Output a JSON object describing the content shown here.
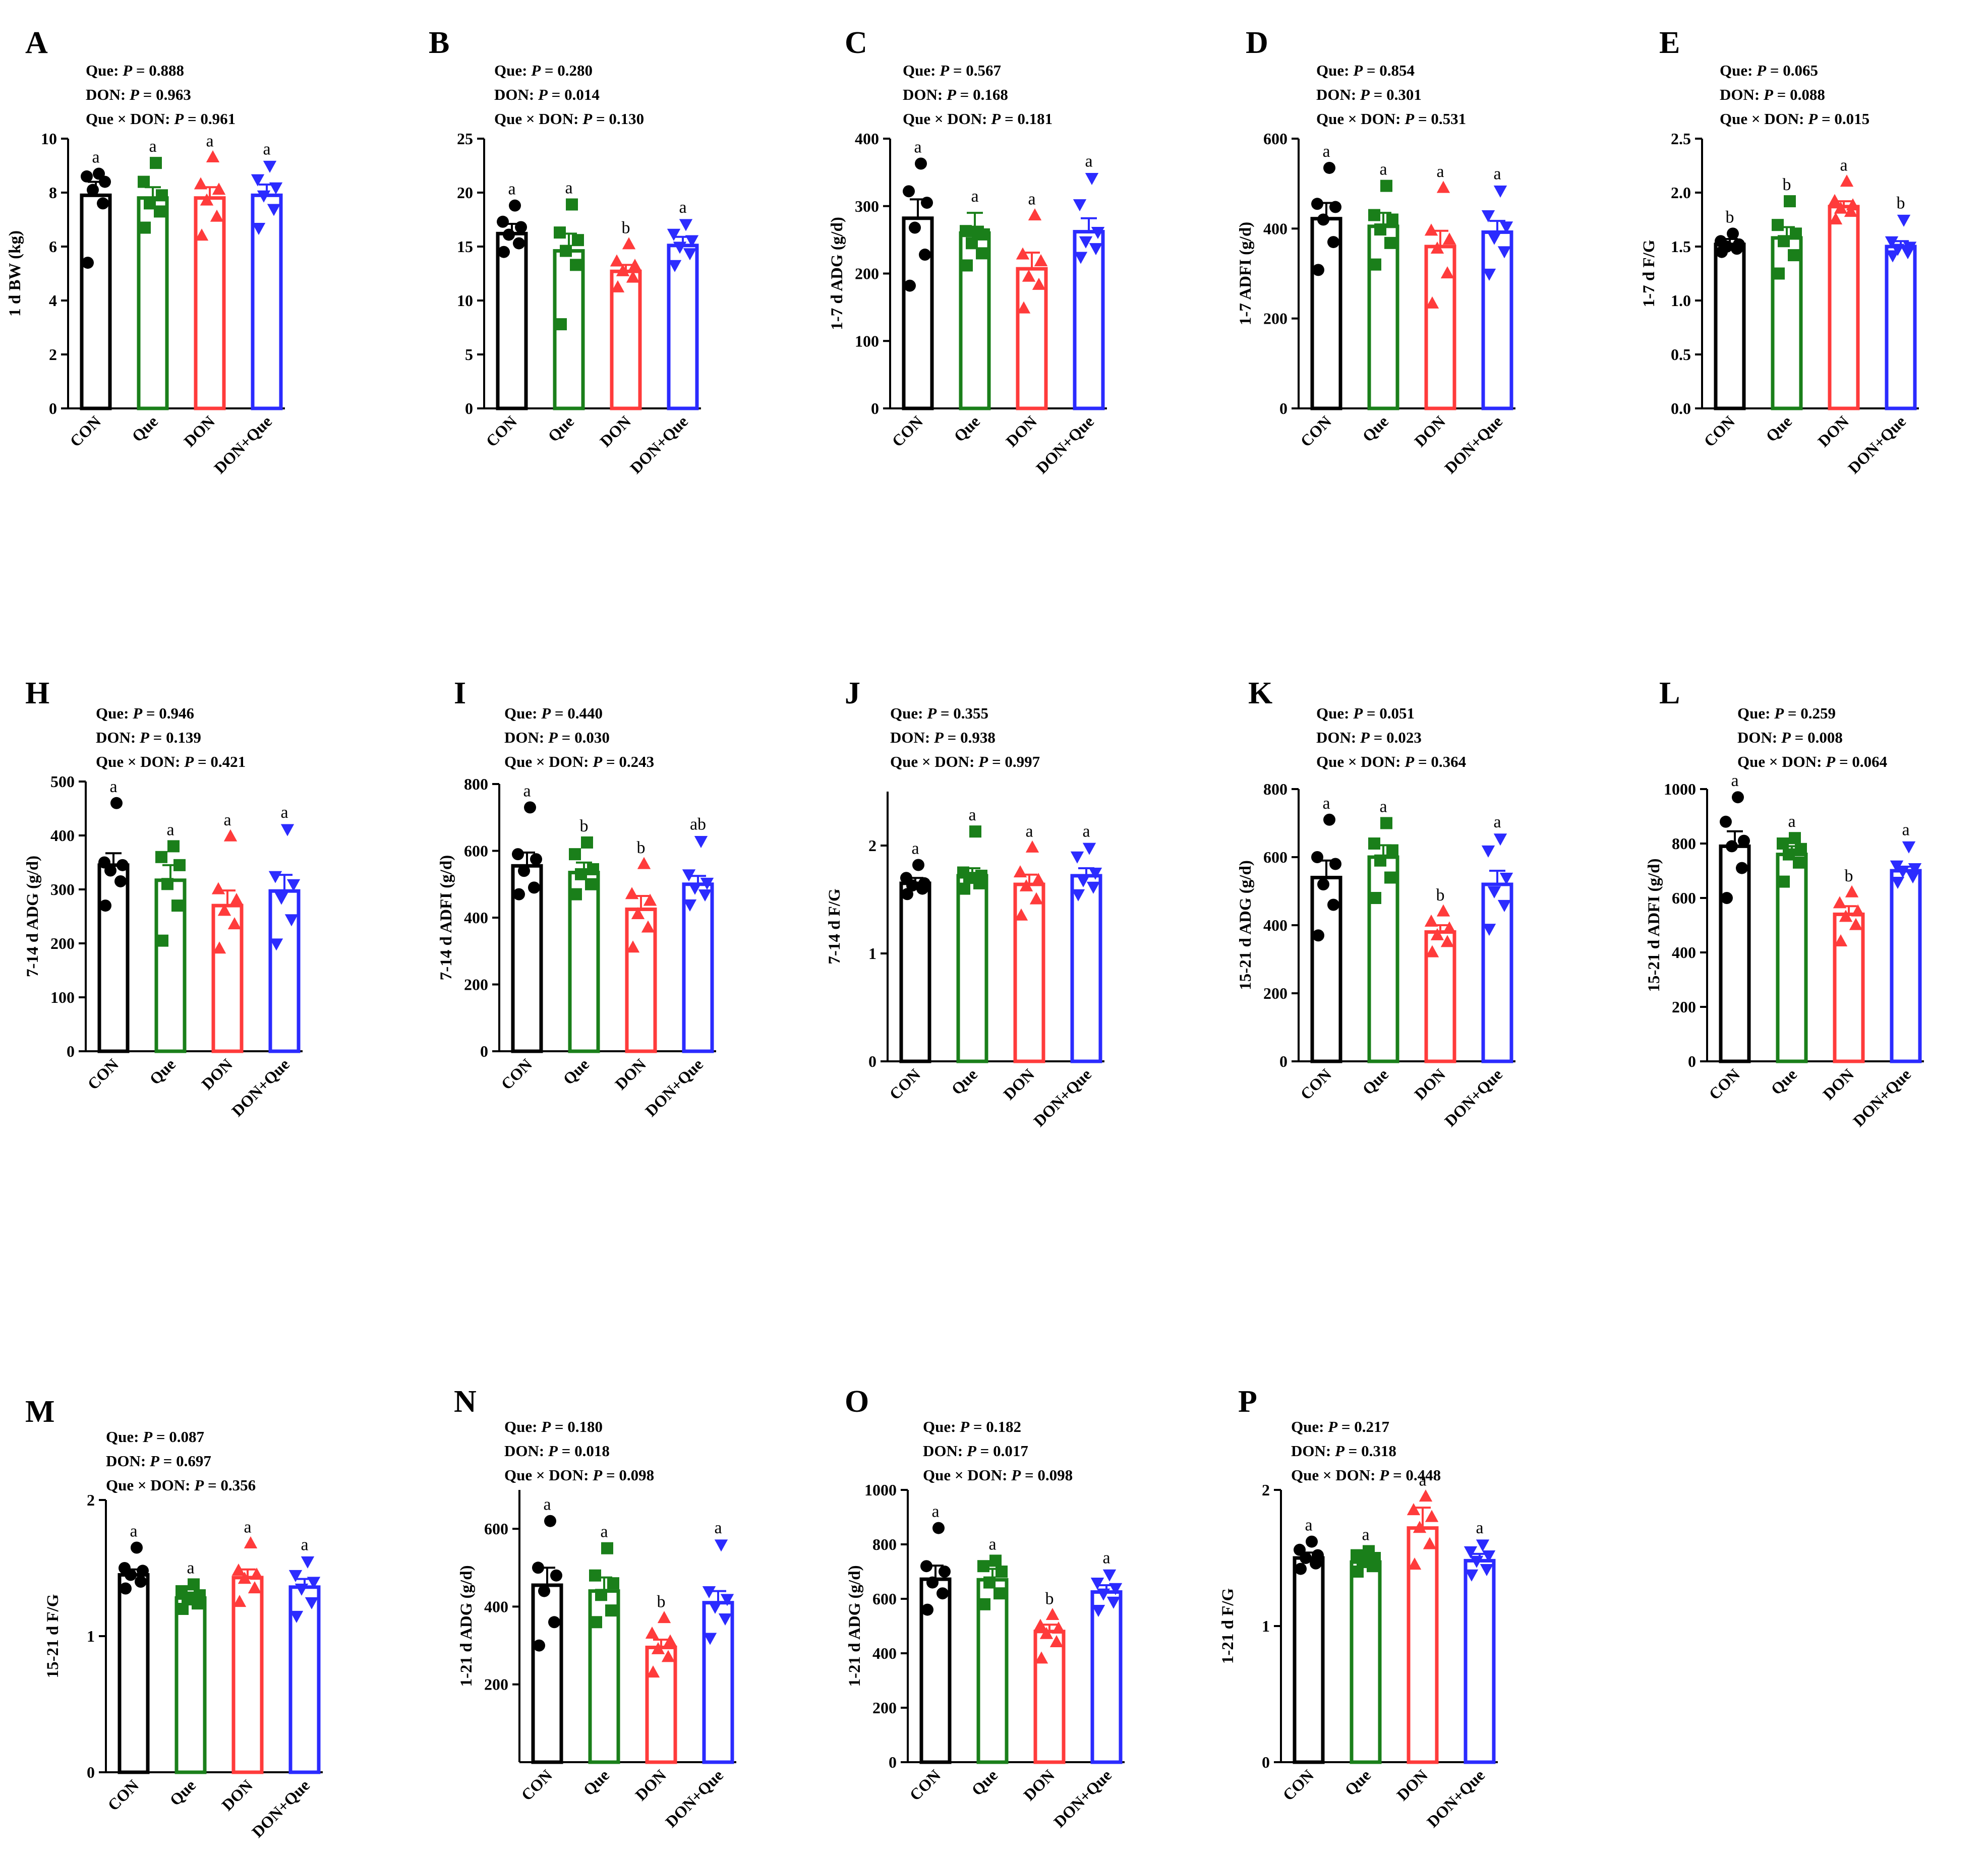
{
  "categories": [
    "CON",
    "Que",
    "DON",
    "DON+Que"
  ],
  "colors": [
    "#000000",
    "#1a7f1a",
    "#ff3b3b",
    "#2b2bff"
  ],
  "marker_shapes": [
    "circle",
    "square",
    "triangle-up",
    "triangle-down"
  ],
  "stat_labels": {
    "que": "Que:",
    "don": "DON:",
    "inter": "Que × DON:",
    "p": "P"
  },
  "chart_data": [
    {
      "panel": "A",
      "type": "bar",
      "ylabel": "1 d BW (kg)",
      "ylim": [
        0,
        10
      ],
      "yticks": [
        "0",
        "2",
        "4",
        "6",
        "8",
        "10"
      ],
      "p_values": [
        "= 0.888",
        "= 0.963",
        "= 0.961"
      ],
      "means": [
        7.9,
        7.8,
        7.8,
        7.9
      ],
      "sem": [
        0.5,
        0.4,
        0.4,
        0.4
      ],
      "letters": [
        "a",
        "a",
        "a",
        "a"
      ],
      "points": [
        [
          5.4,
          7.6,
          8.1,
          8.4,
          8.6,
          8.7
        ],
        [
          6.7,
          7.3,
          7.6,
          7.9,
          8.4,
          9.1
        ],
        [
          6.4,
          7.1,
          7.7,
          8.1,
          8.3,
          9.3
        ],
        [
          6.7,
          7.4,
          7.9,
          8.2,
          8.5,
          9.0
        ]
      ]
    },
    {
      "panel": "B",
      "type": "bar",
      "ylabel": "",
      "ylim": [
        0,
        25
      ],
      "yticks": [
        "0",
        "5",
        "10",
        "15",
        "20",
        "25"
      ],
      "p_values": [
        "= 0.280",
        "= 0.014",
        "= 0.130"
      ],
      "means": [
        16.2,
        14.6,
        12.7,
        15.1
      ],
      "sem": [
        0.9,
        1.6,
        0.6,
        0.8
      ],
      "letters": [
        "a",
        "a",
        "b",
        "a"
      ],
      "points": [
        [
          14.5,
          15.3,
          16.1,
          16.8,
          17.3,
          18.8
        ],
        [
          7.8,
          13.3,
          14.6,
          15.6,
          16.3,
          18.9
        ],
        [
          11.2,
          12.1,
          12.7,
          13.2,
          13.6,
          15.2
        ],
        [
          13.3,
          14.4,
          15.0,
          15.6,
          16.2,
          17.1
        ]
      ]
    },
    {
      "panel": "C",
      "type": "bar",
      "ylabel": "1-7 d ADG (g/d)",
      "ylim": [
        0,
        400
      ],
      "yticks": [
        "0",
        "100",
        "200",
        "300",
        "400"
      ],
      "p_values": [
        "= 0.567",
        "= 0.168",
        "= 0.181"
      ],
      "means": [
        282,
        260,
        207,
        262
      ],
      "sem": [
        28,
        30,
        24,
        20
      ],
      "letters": [
        "a",
        "a",
        "a",
        "a"
      ],
      "points": [
        [
          182,
          228,
          268,
          305,
          322,
          363
        ],
        [
          212,
          230,
          245,
          258,
          263,
          262
        ],
        [
          148,
          183,
          195,
          218,
          228,
          286
        ],
        [
          225,
          238,
          248,
          262,
          303,
          342
        ]
      ]
    },
    {
      "panel": "D",
      "type": "bar",
      "ylabel": "1-7 ADFI (g/d)",
      "ylim": [
        0,
        600
      ],
      "yticks": [
        "0",
        "200",
        "400",
        "600"
      ],
      "p_values": [
        "= 0.854",
        "= 0.301",
        "= 0.531"
      ],
      "means": [
        422,
        405,
        360,
        392
      ],
      "sem": [
        35,
        30,
        35,
        25
      ],
      "letters": [
        "a",
        "a",
        "a",
        "a"
      ],
      "points": [
        [
          308,
          370,
          420,
          448,
          455,
          535
        ],
        [
          320,
          368,
          398,
          420,
          430,
          495
        ],
        [
          233,
          300,
          355,
          375,
          395,
          490
        ],
        [
          300,
          350,
          380,
          405,
          430,
          485
        ]
      ]
    },
    {
      "panel": "E",
      "type": "bar",
      "ylabel": "1-7 d F/G",
      "ylim": [
        0,
        2.5
      ],
      "yticks": [
        "0.0",
        "0.5",
        "1.0",
        "1.5",
        "2.0",
        "2.5"
      ],
      "p_values": [
        "= 0.065",
        "= 0.088",
        "= 0.015"
      ],
      "means": [
        1.52,
        1.58,
        1.87,
        1.5
      ],
      "sem": [
        0.05,
        0.1,
        0.05,
        0.05
      ],
      "letters": [
        "b",
        "b",
        "a",
        "b"
      ],
      "points": [
        [
          1.45,
          1.48,
          1.5,
          1.52,
          1.55,
          1.62
        ],
        [
          1.25,
          1.42,
          1.55,
          1.62,
          1.7,
          1.92
        ],
        [
          1.75,
          1.82,
          1.85,
          1.88,
          1.92,
          2.1
        ],
        [
          1.42,
          1.45,
          1.48,
          1.5,
          1.55,
          1.75
        ]
      ]
    },
    {
      "panel": "H",
      "type": "bar",
      "ylabel": "7-14 d ADG (g/d)",
      "ylim": [
        0,
        500
      ],
      "yticks": [
        "0",
        "100",
        "200",
        "300",
        "400",
        "500"
      ],
      "p_values": [
        "= 0.946",
        "= 0.139",
        "= 0.421"
      ],
      "means": [
        345,
        317,
        270,
        297
      ],
      "sem": [
        22,
        28,
        28,
        30
      ],
      "letters": [
        "a",
        "a",
        "a",
        "a"
      ],
      "points": [
        [
          270,
          315,
          335,
          345,
          350,
          460
        ],
        [
          205,
          270,
          310,
          345,
          360,
          380
        ],
        [
          190,
          235,
          260,
          280,
          300,
          398
        ],
        [
          200,
          245,
          285,
          310,
          325,
          412
        ]
      ]
    },
    {
      "panel": "I",
      "type": "bar",
      "ylabel": "7-14 d ADFI (g/d)",
      "ylim": [
        0,
        800
      ],
      "yticks": [
        "0",
        "200",
        "400",
        "600",
        "800"
      ],
      "p_values": [
        "= 0.440",
        "= 0.030",
        "= 0.243"
      ],
      "means": [
        555,
        535,
        425,
        500
      ],
      "sem": [
        40,
        30,
        40,
        25
      ],
      "letters": [
        "a",
        "b",
        "b",
        "ab"
      ],
      "points": [
        [
          470,
          490,
          540,
          575,
          590,
          730
        ],
        [
          470,
          500,
          530,
          545,
          590,
          625
        ],
        [
          310,
          370,
          410,
          450,
          470,
          560
        ],
        [
          440,
          470,
          490,
          505,
          530,
          630
        ]
      ]
    },
    {
      "panel": "J",
      "type": "bar",
      "ylabel": "7-14 d F/G",
      "ylim": [
        0,
        2.5
      ],
      "yticks": [
        "0",
        "1",
        "2"
      ],
      "p_values": [
        "= 0.355",
        "= 0.938",
        "= 0.997"
      ],
      "means": [
        1.65,
        1.72,
        1.64,
        1.72
      ],
      "sem": [
        0.05,
        0.07,
        0.09,
        0.07
      ],
      "letters": [
        "a",
        "a",
        "a",
        "a"
      ],
      "points": [
        [
          1.55,
          1.6,
          1.63,
          1.65,
          1.7,
          1.82
        ],
        [
          1.6,
          1.65,
          1.7,
          1.72,
          1.75,
          2.13
        ],
        [
          1.35,
          1.5,
          1.62,
          1.68,
          1.75,
          1.98
        ],
        [
          1.55,
          1.62,
          1.68,
          1.75,
          1.9,
          1.98
        ]
      ]
    },
    {
      "panel": "K",
      "type": "bar",
      "ylabel": "15-21 d ADG (g/d)",
      "ylim": [
        0,
        800
      ],
      "yticks": [
        "0",
        "200",
        "400",
        "600",
        "800"
      ],
      "p_values": [
        "= 0.051",
        "= 0.023",
        "= 0.364"
      ],
      "means": [
        540,
        600,
        380,
        520
      ],
      "sem": [
        50,
        35,
        20,
        40
      ],
      "letters": [
        "a",
        "a",
        "b",
        "a"
      ],
      "points": [
        [
          370,
          460,
          520,
          580,
          600,
          710
        ],
        [
          480,
          540,
          590,
          620,
          640,
          700
        ],
        [
          320,
          350,
          370,
          390,
          410,
          440
        ],
        [
          390,
          460,
          500,
          540,
          620,
          655
        ]
      ]
    },
    {
      "panel": "L",
      "type": "bar",
      "ylabel": "15-21 d ADFI (g/d)",
      "ylim": [
        0,
        1000
      ],
      "yticks": [
        "0",
        "200",
        "400",
        "600",
        "800",
        "1000"
      ],
      "p_values": [
        "= 0.259",
        "= 0.008",
        "= 0.064"
      ],
      "means": [
        790,
        760,
        540,
        700
      ],
      "sem": [
        55,
        30,
        30,
        15
      ],
      "letters": [
        "a",
        "a",
        "b",
        "a"
      ],
      "points": [
        [
          600,
          710,
          790,
          810,
          880,
          970
        ],
        [
          660,
          730,
          760,
          780,
          800,
          820
        ],
        [
          440,
          500,
          530,
          550,
          580,
          620
        ],
        [
          660,
          680,
          700,
          710,
          720,
          790
        ]
      ]
    },
    {
      "panel": "M",
      "type": "bar",
      "ylabel": "15-21 d F/G",
      "ylim": [
        0,
        2
      ],
      "yticks": [
        "0",
        "1",
        "2"
      ],
      "p_values": [
        "= 0.087",
        "= 0.697",
        "= 0.356"
      ],
      "means": [
        1.45,
        1.28,
        1.43,
        1.36
      ],
      "sem": [
        0.04,
        0.04,
        0.06,
        0.06
      ],
      "letters": [
        "a",
        "a",
        "a",
        "a"
      ],
      "points": [
        [
          1.35,
          1.4,
          1.45,
          1.48,
          1.5,
          1.65
        ],
        [
          1.2,
          1.24,
          1.27,
          1.3,
          1.33,
          1.38
        ],
        [
          1.25,
          1.35,
          1.42,
          1.45,
          1.48,
          1.68
        ],
        [
          1.15,
          1.25,
          1.35,
          1.4,
          1.45,
          1.55
        ]
      ]
    },
    {
      "panel": "N",
      "type": "bar",
      "ylabel": "1-21 d ADG (g/d)",
      "ylim": [
        0,
        700
      ],
      "yticks": [
        "200",
        "400",
        "600"
      ],
      "p_values": [
        "= 0.180",
        "= 0.018",
        "= 0.098"
      ],
      "means": [
        455,
        440,
        295,
        410
      ],
      "sem": [
        45,
        35,
        20,
        30
      ],
      "letters": [
        "a",
        "a",
        "b",
        "a"
      ],
      "points": [
        [
          300,
          360,
          440,
          480,
          500,
          620
        ],
        [
          360,
          390,
          430,
          460,
          480,
          550
        ],
        [
          230,
          270,
          290,
          310,
          330,
          370
        ],
        [
          320,
          370,
          400,
          420,
          440,
          560
        ]
      ]
    },
    {
      "panel": "O",
      "type": "bar",
      "ylabel": "1-21 d ADG (g/d)",
      "ylim": [
        0,
        1000
      ],
      "yticks": [
        "0",
        "200",
        "400",
        "600",
        "800",
        "1000"
      ],
      "p_values": [
        "= 0.182",
        "= 0.017",
        "= 0.098"
      ],
      "means": [
        672,
        670,
        480,
        625
      ],
      "sem": [
        50,
        40,
        25,
        25
      ],
      "letters": [
        "a",
        "a",
        "b",
        "a"
      ],
      "points": [
        [
          560,
          620,
          660,
          700,
          720,
          860
        ],
        [
          580,
          620,
          660,
          700,
          720,
          740
        ],
        [
          380,
          440,
          470,
          490,
          500,
          540
        ],
        [
          560,
          590,
          620,
          640,
          660,
          690
        ]
      ]
    },
    {
      "panel": "P",
      "type": "bar",
      "ylabel": "1-21 d F/G",
      "ylim": [
        0,
        2
      ],
      "yticks": [
        "0",
        "1",
        "2"
      ],
      "p_values": [
        "= 0.217",
        "= 0.318",
        "= 0.448"
      ],
      "means": [
        1.5,
        1.47,
        1.72,
        1.48
      ],
      "sem": [
        0.04,
        0.03,
        0.15,
        0.05
      ],
      "letters": [
        "a",
        "a",
        "a",
        "a"
      ],
      "points": [
        [
          1.42,
          1.46,
          1.5,
          1.52,
          1.56,
          1.62
        ],
        [
          1.4,
          1.44,
          1.47,
          1.5,
          1.52,
          1.55
        ],
        [
          1.45,
          1.6,
          1.72,
          1.8,
          1.85,
          1.95
        ],
        [
          1.38,
          1.42,
          1.48,
          1.52,
          1.55,
          1.6
        ]
      ]
    }
  ]
}
